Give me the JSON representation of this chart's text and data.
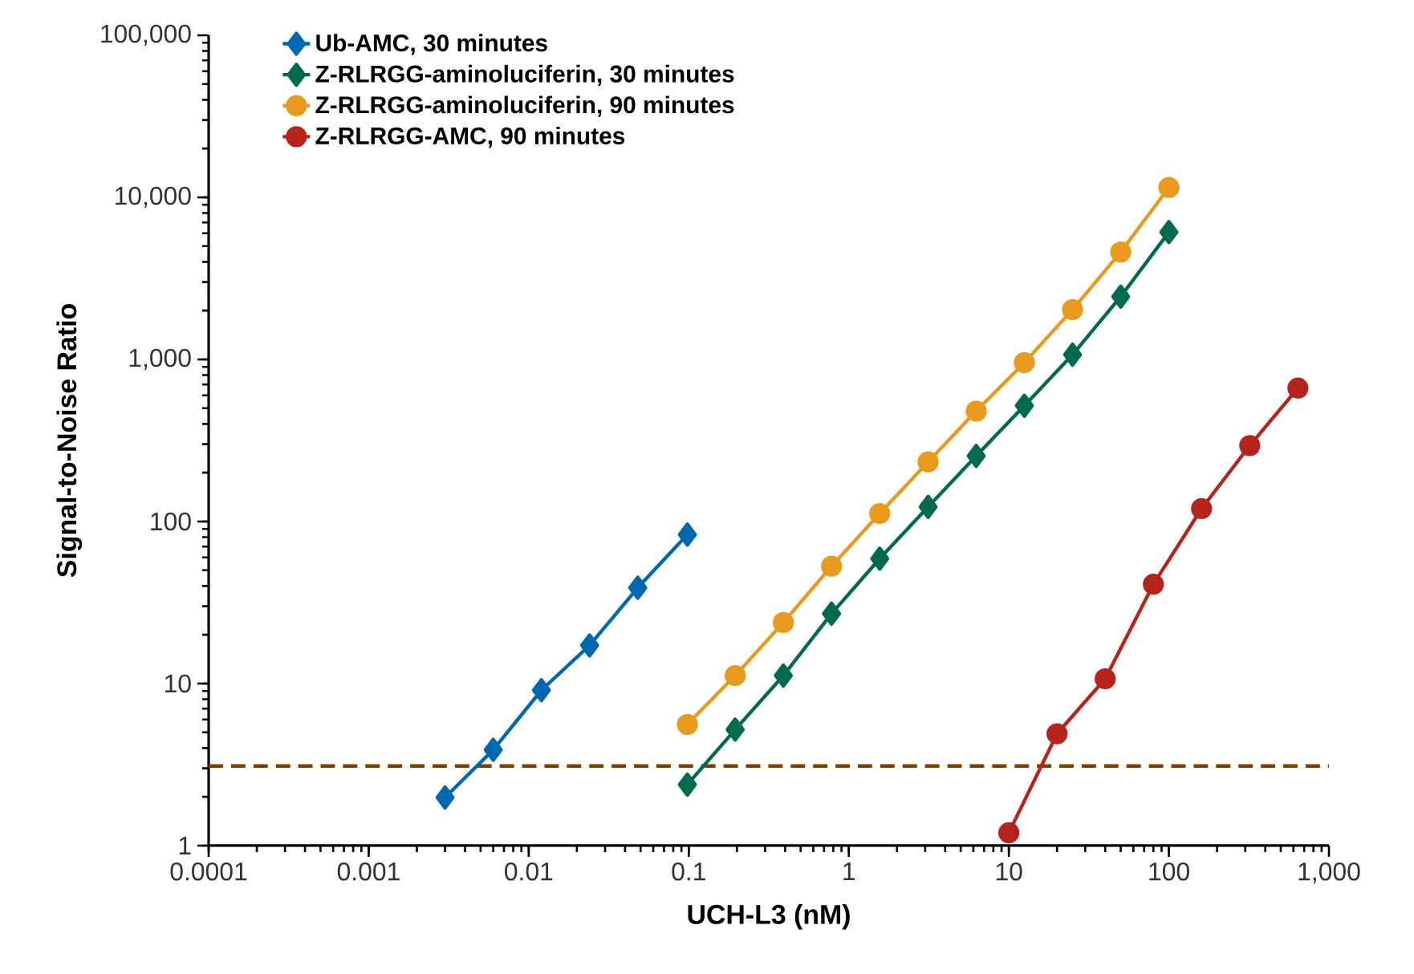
{
  "chart_data": {
    "type": "line",
    "xlabel": "UCH-L3 (nM)",
    "ylabel": "Signal-to-Noise Ratio",
    "log": "xy",
    "legend": "top left",
    "grid": false,
    "xlim": [
      0.0001,
      1000
    ],
    "ylim": [
      1,
      100000
    ],
    "xticks": [
      {
        "value": 0.0001,
        "label": "0.0001"
      },
      {
        "value": 0.001,
        "label": "0.001"
      },
      {
        "value": 0.01,
        "label": "0.01"
      },
      {
        "value": 0.1,
        "label": "0.1"
      },
      {
        "value": 1,
        "label": "1"
      },
      {
        "value": 10,
        "label": "10"
      },
      {
        "value": 100,
        "label": "100"
      },
      {
        "value": 1000,
        "label": "1,000"
      }
    ],
    "yticks": [
      {
        "value": 1,
        "label": "1"
      },
      {
        "value": 10,
        "label": "10"
      },
      {
        "value": 100,
        "label": "100"
      },
      {
        "value": 1000,
        "label": "1,000"
      },
      {
        "value": 10000,
        "label": "10,000"
      },
      {
        "value": 100000,
        "label": "100,000"
      }
    ],
    "series": [
      {
        "name": "Ub-AMC, 30 minutes",
        "color": "#0068b1",
        "marker": "diamond",
        "x": [
          0.003,
          0.006,
          0.012,
          0.024,
          0.048,
          0.098
        ],
        "values": [
          1.98,
          3.9,
          9.1,
          17.2,
          39,
          83
        ]
      },
      {
        "name": "Z-RLRGG-aminoluciferin, 30 minutes",
        "color": "#006a4e",
        "marker": "diamond",
        "x": [
          0.098,
          0.195,
          0.39,
          0.78,
          1.56,
          3.13,
          6.25,
          12.5,
          25,
          50,
          100
        ],
        "values": [
          2.38,
          5.2,
          11.2,
          27,
          59,
          123,
          254,
          518,
          1070,
          2440,
          6100
        ]
      },
      {
        "name": "Z-RLRGG-aminoluciferin, 90 minutes",
        "color": "#e89a1e",
        "marker": "circle",
        "x": [
          0.098,
          0.195,
          0.39,
          0.78,
          1.56,
          3.13,
          6.25,
          12.5,
          25,
          50,
          100
        ],
        "values": [
          5.6,
          11.2,
          23.8,
          53,
          112,
          233,
          480,
          955,
          2030,
          4600,
          11500
        ]
      },
      {
        "name": "Z-RLRGG-AMC, 90 minutes",
        "color": "#b5231a",
        "marker": "circle",
        "x": [
          10,
          20,
          40,
          80,
          160,
          320,
          640
        ],
        "values": [
          1.2,
          4.9,
          10.7,
          41,
          120,
          294,
          665
        ]
      }
    ],
    "ref_lines": [
      {
        "axis": "y",
        "value": 3.1,
        "color": "#7f3f00",
        "line_style": "dashed"
      }
    ]
  }
}
